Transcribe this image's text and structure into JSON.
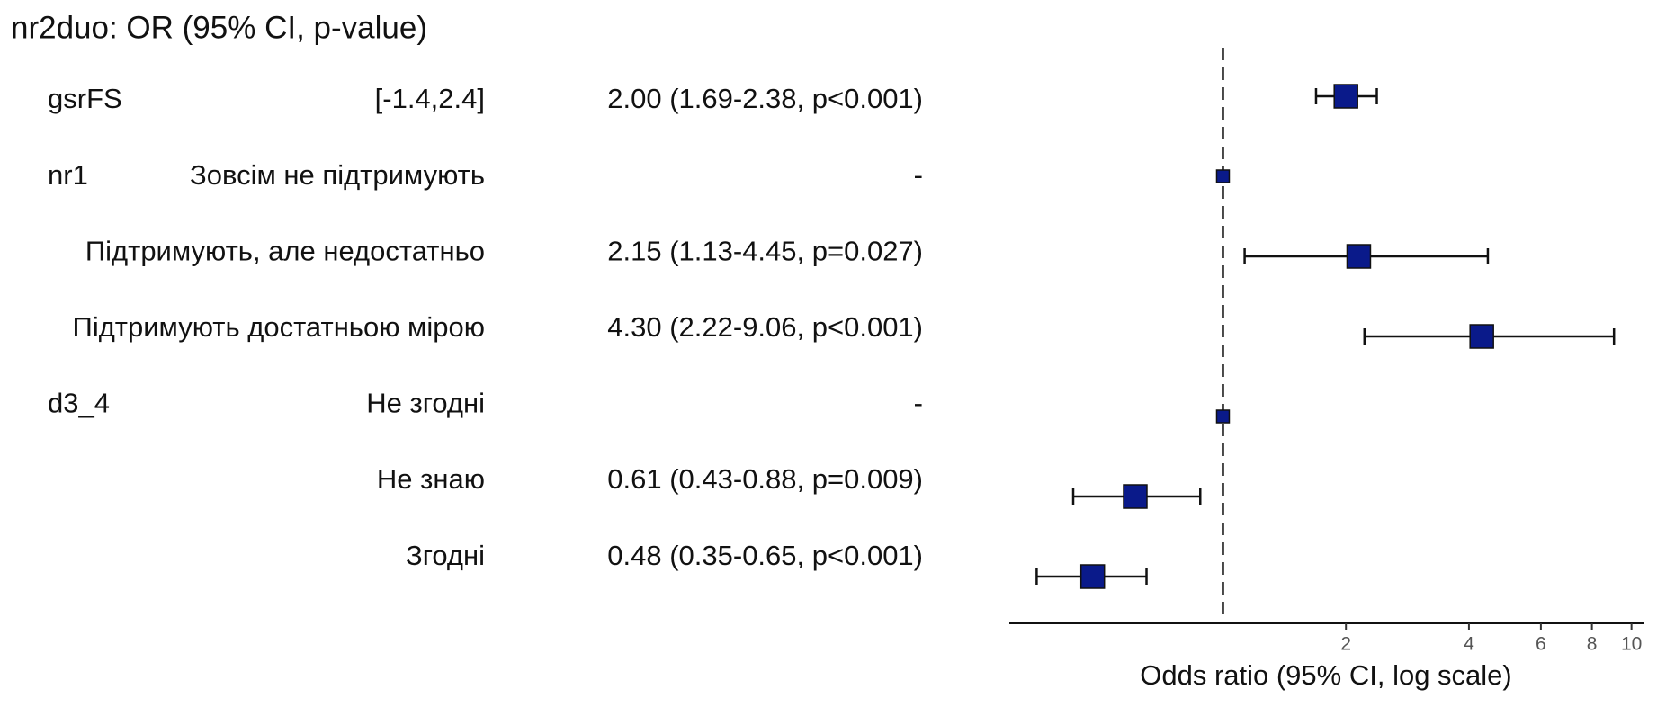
{
  "chart_data": {
    "type": "forest",
    "title": "nr2duo: OR (95% CI, p-value)",
    "x_label": "Odds ratio (95% CI, log scale)",
    "log_x": true,
    "xlim": [
      0.3,
      10.7
    ],
    "xticks": [
      2,
      4,
      6,
      8,
      10
    ],
    "reference_line": 1,
    "color": "#0a1a8a",
    "rows": [
      {
        "variable": "gsrFS",
        "level": "[-1.4,2.4]",
        "label": "2.00 (1.69-2.38, p<0.001)",
        "value": 2.0,
        "lower": 1.69,
        "upper": 2.38
      },
      {
        "variable": "nr1",
        "level": "Зовсім не підтримують",
        "label": "-",
        "value": 1,
        "lower": null,
        "upper": null
      },
      {
        "variable": null,
        "level": "Підтримують, але недостатньо",
        "label": "2.15 (1.13-4.45, p=0.027)",
        "value": 2.15,
        "lower": 1.13,
        "upper": 4.45
      },
      {
        "variable": null,
        "level": "Підтримують достатньою мірою",
        "label": "4.30 (2.22-9.06, p<0.001)",
        "value": 4.3,
        "lower": 2.22,
        "upper": 9.06
      },
      {
        "variable": "d3_4",
        "level": "Не згодні",
        "label": "-",
        "value": 1,
        "lower": null,
        "upper": null
      },
      {
        "variable": null,
        "level": "Не знаю",
        "label": "0.61 (0.43-0.88, p=0.009)",
        "value": 0.61,
        "lower": 0.43,
        "upper": 0.88
      },
      {
        "variable": null,
        "level": "Згодні",
        "label": "0.48 (0.35-0.65, p<0.001)",
        "value": 0.48,
        "lower": 0.35,
        "upper": 0.65
      }
    ]
  }
}
